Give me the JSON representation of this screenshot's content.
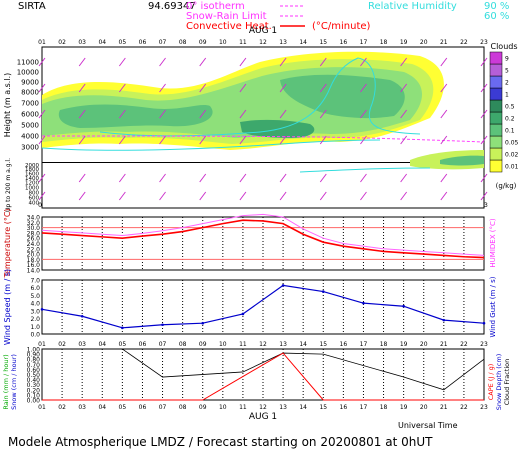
{
  "header": {
    "station": "SIRTA",
    "coords": "94.69347",
    "legend_isotherm": "0° isotherm",
    "legend_snow_rain": "Snow-Rain Limit",
    "legend_convective": "Convective Heat.",
    "legend_cpm": "(°C/minute)",
    "legend_rh": "Relative Humidity",
    "rh_90": "90 %",
    "rh_60": "60 %"
  },
  "footer": {
    "title": "Modele Atmospherique LMDZ / Forecast starting on 20200801 at 0hUT",
    "universal_time": "Universal Time"
  },
  "date_label": "AUG  1",
  "colors": {
    "cloud_scale": [
      "#ffff33",
      "#c8f25a",
      "#8ee07a",
      "#5cc27a",
      "#3da86c",
      "#2e8a5c",
      "#3b3bd4",
      "#6a6af0",
      "#b65fd8",
      "#cc3ad8"
    ],
    "temperature": "#ff0000",
    "humidex": "#ff66ff",
    "wind": "#0000cc",
    "rain": "#ff0000",
    "cloud_fraction": "#000000",
    "isotherm": "#ff44ff",
    "rh": "#33dddd"
  },
  "chart_data": [
    {
      "type": "heatmap",
      "title": "Clouds",
      "ylabel": "Height (m a.s.l.)",
      "ylabel2": "Up to 200 m a.g.l.",
      "units": "(g/kg)",
      "hours": [
        "01",
        "02",
        "03",
        "04",
        "05",
        "06",
        "07",
        "08",
        "09",
        "10",
        "11",
        "12",
        "13",
        "14",
        "15",
        "16",
        "17",
        "18",
        "19",
        "20",
        "21",
        "22",
        "23"
      ],
      "y_ticks": [
        "11000",
        "10000",
        "9000",
        "8000",
        "7000",
        "6000",
        "5000",
        "4000",
        "3000",
        "2000",
        "1800",
        "1600",
        "1400",
        "1200",
        "1000",
        "800",
        "600",
        "400",
        "200"
      ],
      "colorbar_labels": [
        "9",
        "5",
        "2",
        "1",
        "0.5",
        "0.2",
        "0.1",
        "0.05",
        "0.02",
        "0.01"
      ]
    },
    {
      "type": "line",
      "ylabel": "Temperature (°C)",
      "ylabel2": "HUMIDEX (°C)",
      "ylim": [
        14,
        34
      ],
      "y_ticks": [
        "34.0",
        "32.0",
        "30.0",
        "28.0",
        "26.0",
        "24.0",
        "22.0",
        "20.0",
        "18.0",
        "16.0",
        "14.0"
      ],
      "series": [
        {
          "name": "Temperature",
          "values": [
            28.0,
            27.5,
            27.0,
            26.5,
            26.0,
            26.8,
            27.5,
            28.5,
            30.0,
            31.5,
            32.8,
            32.5,
            31.5,
            27.5,
            24.5,
            23.0,
            22.0,
            21.0,
            20.5,
            20.0,
            19.5,
            19.0,
            18.7
          ]
        },
        {
          "name": "HUMIDEX",
          "values": [
            29.0,
            28.5,
            28.0,
            27.5,
            27.0,
            27.8,
            28.8,
            30.0,
            31.5,
            33.0,
            34.5,
            35.0,
            34.0,
            29.5,
            26.0,
            24.0,
            23.0,
            22.0,
            21.5,
            21.0,
            20.5,
            20.0,
            19.5
          ]
        }
      ]
    },
    {
      "type": "line",
      "ylabel": "Wind Speed (m / s)",
      "ylabel2": "Wind Gust (m / s)",
      "ylim": [
        0,
        7
      ],
      "y_ticks": [
        "7.0",
        "6.0",
        "5.0",
        "4.0",
        "3.0",
        "2.0",
        "1.0",
        "0.0"
      ],
      "series": [
        {
          "name": "Wind Speed",
          "x": [
            1,
            3,
            5,
            7,
            9,
            11,
            13,
            15,
            17,
            19,
            21,
            23
          ],
          "values": [
            3.2,
            2.3,
            0.8,
            1.2,
            1.4,
            2.6,
            6.3,
            5.5,
            4.0,
            3.6,
            1.8,
            1.4
          ]
        }
      ]
    },
    {
      "type": "line",
      "ylabel": "Rain (mm / hour)",
      "ylabel_b": "Snow (cm / hour)",
      "ylabel2": "CAPE (J / g)",
      "ylabel2_b": "Snow Depth (cm)",
      "ylabel2_c": "Cloud Fraction",
      "ylim": [
        0,
        1
      ],
      "y_ticks": [
        "1.00",
        "0.90",
        "0.80",
        "0.70",
        "0.60",
        "0.50",
        "0.40",
        "0.30",
        "0.20",
        "0.10",
        "0.00"
      ],
      "series": [
        {
          "name": "Cloud Fraction",
          "x": [
            1,
            5,
            7,
            11,
            13,
            15,
            19,
            21,
            23
          ],
          "values": [
            1.0,
            1.0,
            0.45,
            0.55,
            0.92,
            0.9,
            0.45,
            0.2,
            0.8
          ]
        },
        {
          "name": "Rain",
          "x": [
            1,
            9,
            13,
            15,
            23
          ],
          "values": [
            0,
            0,
            0.92,
            0,
            0
          ]
        }
      ]
    }
  ]
}
